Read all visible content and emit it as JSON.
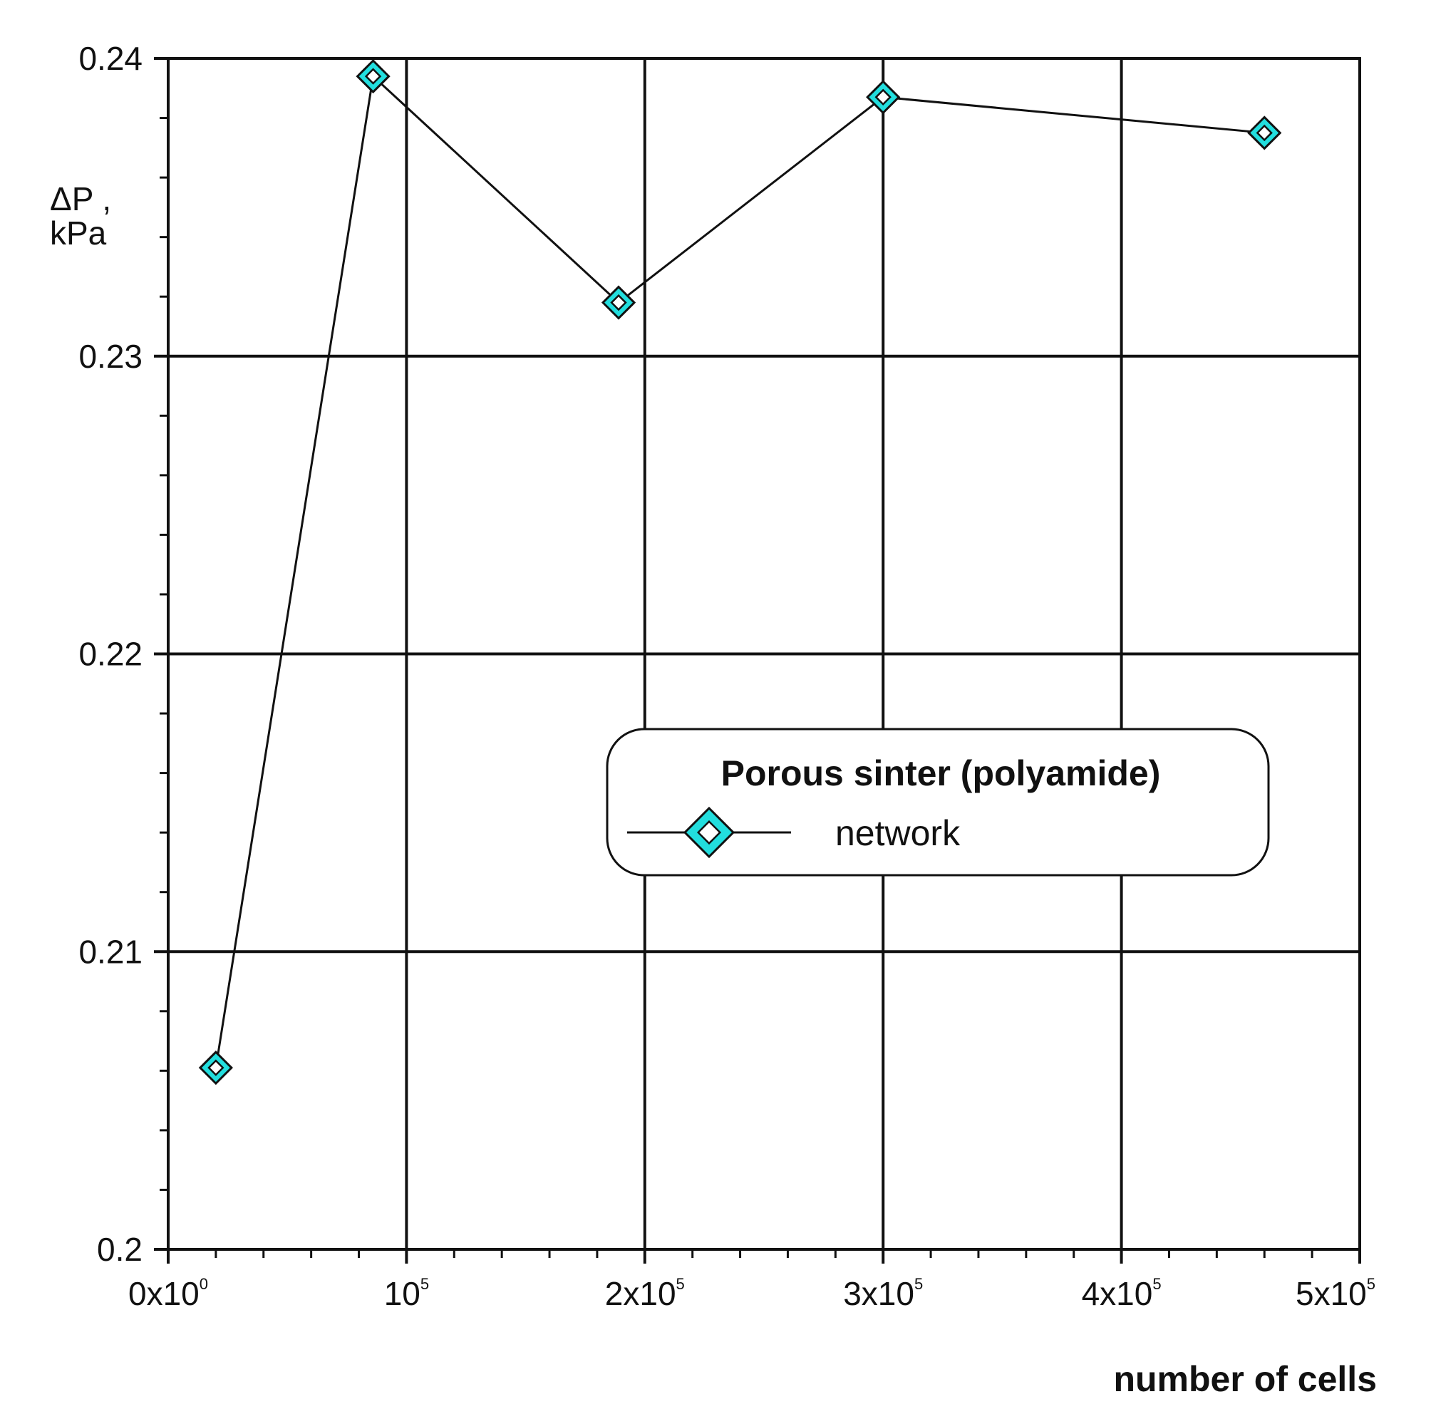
{
  "chart_data": {
    "type": "line",
    "title": "",
    "xlabel": "number of cells",
    "ylabel": [
      "ΔP ,",
      "kPa"
    ],
    "xlim": [
      0,
      500000
    ],
    "ylim": [
      0.2,
      0.24
    ],
    "grid": true,
    "x_ticks": [
      {
        "value": 0,
        "base": "0x10",
        "exp": "0"
      },
      {
        "value": 100000,
        "base": "10",
        "exp": "5"
      },
      {
        "value": 200000,
        "base": "2x10",
        "exp": "5"
      },
      {
        "value": 300000,
        "base": "3x10",
        "exp": "5"
      },
      {
        "value": 400000,
        "base": "4x10",
        "exp": "5"
      },
      {
        "value": 500000,
        "base": "5x10",
        "exp": "5"
      }
    ],
    "y_ticks": [
      {
        "value": 0.2,
        "label": "0.2"
      },
      {
        "value": 0.21,
        "label": "0.21"
      },
      {
        "value": 0.22,
        "label": "0.22"
      },
      {
        "value": 0.23,
        "label": "0.23"
      },
      {
        "value": 0.24,
        "label": "0.24"
      }
    ],
    "legend": {
      "title": "Porous sinter (polyamide)",
      "placement": "center-right"
    },
    "series": [
      {
        "name": "network",
        "marker": "diamond",
        "marker_color": "#22dede",
        "line_color": "#111111",
        "x": [
          20000,
          86000,
          189000,
          300000,
          460000
        ],
        "y": [
          0.2061,
          0.2394,
          0.2318,
          0.2387,
          0.2375
        ]
      }
    ]
  }
}
